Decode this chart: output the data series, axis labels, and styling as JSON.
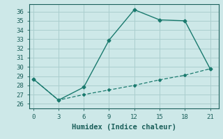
{
  "title": "",
  "xlabel": "Humidex (Indice chaleur)",
  "ylabel": "",
  "line1_x": [
    0,
    3,
    6,
    9,
    12,
    15,
    18,
    21
  ],
  "line1_y": [
    28.7,
    26.4,
    27.8,
    32.9,
    36.2,
    35.1,
    35.0,
    29.8
  ],
  "line2_x": [
    0,
    3,
    6,
    9,
    12,
    15,
    18,
    21
  ],
  "line2_y": [
    28.7,
    26.4,
    27.0,
    27.5,
    28.0,
    28.6,
    29.1,
    29.8
  ],
  "line_color": "#1a7a6e",
  "xlim": [
    -0.5,
    22
  ],
  "ylim": [
    25.5,
    36.8
  ],
  "xticks": [
    0,
    3,
    6,
    9,
    12,
    15,
    18,
    21
  ],
  "yticks": [
    26,
    27,
    28,
    29,
    30,
    31,
    32,
    33,
    34,
    35,
    36
  ],
  "bg_color": "#cde8e8",
  "grid_color": "#aacece",
  "font_color": "#1a5f5a",
  "tick_fontsize": 6.5,
  "xlabel_fontsize": 7.5
}
